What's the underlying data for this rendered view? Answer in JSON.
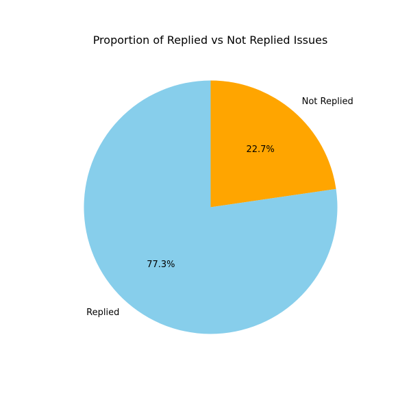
{
  "chart_data": {
    "type": "pie",
    "title": "Proportion of Replied vs Not Replied Issues",
    "start_angle_deg": 90,
    "direction": "clockwise",
    "slices": [
      {
        "label": "Not Replied",
        "value": 22.7,
        "pct_label": "22.7%",
        "color": "#FFA500"
      },
      {
        "label": "Replied",
        "value": 77.3,
        "pct_label": "77.3%",
        "color": "#87CEEB"
      }
    ]
  }
}
